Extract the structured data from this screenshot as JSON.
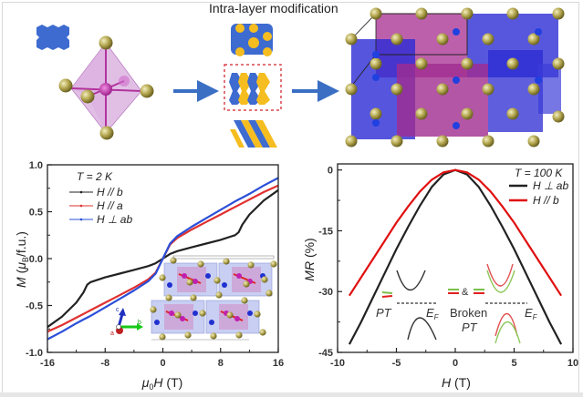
{
  "figure": {
    "title": "Intra-layer modification",
    "schematic": {
      "panels": [
        "single-layer-honeycomb",
        "octahedron",
        "modified-patterns",
        "layered-crystal-structure"
      ],
      "colors": {
        "blue": "#3f6fd0",
        "yellow": "#f5bd1f",
        "magenta": "#b03a9c",
        "olive": "#a89a3c",
        "arrow": "#3a6fc4",
        "highlight_box": "#d9454f"
      }
    },
    "inset_axes_labels": {
      "a": "a",
      "b": "b",
      "c": "c"
    },
    "band_inset": {
      "left_label": "PT",
      "right_label_line1": "Broken",
      "right_label_line2": "PT",
      "amp": "&",
      "ef_label": "E",
      "ef_sub": "F"
    }
  },
  "chart_data": [
    {
      "type": "line",
      "title": "",
      "xlabel": "μ0H (T)",
      "ylabel": "M (μB/f.u.)",
      "xlim": [
        -16,
        16
      ],
      "ylim": [
        -1.0,
        1.0
      ],
      "xticks": [
        -16,
        -8,
        0,
        8,
        16
      ],
      "yticks": [
        -1.0,
        -0.5,
        0.0,
        0.5,
        1.0
      ],
      "xtick_labels": [
        "-16",
        "-8",
        "0",
        "8",
        "16"
      ],
      "ytick_labels": [
        "-1.0",
        "-0.5",
        "0.0",
        "0.5",
        "1.0"
      ],
      "legend_title": "T = 2 K",
      "legend_position": "top-left",
      "grid": false,
      "x": [
        -16,
        -14,
        -12,
        -11,
        -10.5,
        -10,
        -8,
        -6,
        -4,
        -2,
        -1,
        0,
        1,
        2,
        4,
        6,
        8,
        10,
        10.5,
        11,
        12,
        14,
        16
      ],
      "series": [
        {
          "name": "H // b",
          "color": "#222222",
          "values": [
            -0.73,
            -0.62,
            -0.47,
            -0.36,
            -0.28,
            -0.25,
            -0.2,
            -0.16,
            -0.12,
            -0.08,
            -0.05,
            0.0,
            0.05,
            0.08,
            0.12,
            0.16,
            0.2,
            0.25,
            0.28,
            0.36,
            0.47,
            0.62,
            0.73
          ]
        },
        {
          "name": "H // a",
          "color": "#e03030",
          "values": [
            -0.78,
            -0.71,
            -0.63,
            -0.59,
            -0.57,
            -0.55,
            -0.47,
            -0.39,
            -0.31,
            -0.22,
            -0.15,
            0.0,
            0.15,
            0.22,
            0.31,
            0.39,
            0.47,
            0.55,
            0.57,
            0.59,
            0.63,
            0.71,
            0.78
          ]
        },
        {
          "name": "H ⊥ ab",
          "color": "#2a4fd8",
          "values": [
            -0.86,
            -0.78,
            -0.69,
            -0.65,
            -0.63,
            -0.61,
            -0.52,
            -0.43,
            -0.34,
            -0.24,
            -0.16,
            0.0,
            0.16,
            0.24,
            0.34,
            0.43,
            0.52,
            0.61,
            0.63,
            0.65,
            0.69,
            0.78,
            0.86
          ]
        }
      ]
    },
    {
      "type": "line",
      "title": "",
      "xlabel": "H (T)",
      "ylabel": "MR (%)",
      "xlim": [
        -10,
        10
      ],
      "ylim": [
        -45,
        1.5
      ],
      "xticks": [
        -10,
        -5,
        0,
        5,
        10
      ],
      "yticks": [
        -45,
        -30,
        -15,
        0
      ],
      "xtick_labels": [
        "-10",
        "-5",
        "0",
        "5",
        "10"
      ],
      "ytick_labels": [
        "-45",
        "-30",
        "-15",
        "0"
      ],
      "legend_title": "T = 100 K",
      "legend_position": "top-right",
      "grid": false,
      "x": [
        -9,
        -8,
        -7,
        -6,
        -5,
        -4,
        -3,
        -2,
        -1,
        0,
        1,
        2,
        3,
        4,
        5,
        6,
        7,
        8,
        9
      ],
      "series": [
        {
          "name": "H ⊥ ab",
          "color": "#222222",
          "values": [
            -43,
            -37.5,
            -31.5,
            -25.5,
            -19.5,
            -14,
            -8.8,
            -4.2,
            -1.1,
            0,
            -1.1,
            -4.2,
            -8.8,
            -14,
            -19.5,
            -25.5,
            -31.5,
            -37.5,
            -43
          ]
        },
        {
          "name": "H // b",
          "color": "#e01010",
          "values": [
            -31,
            -26.5,
            -22,
            -17.5,
            -13,
            -9,
            -5.3,
            -2.4,
            -0.6,
            0,
            -0.6,
            -2.4,
            -5.3,
            -9,
            -13,
            -17.5,
            -22,
            -26.5,
            -31
          ]
        }
      ]
    }
  ]
}
